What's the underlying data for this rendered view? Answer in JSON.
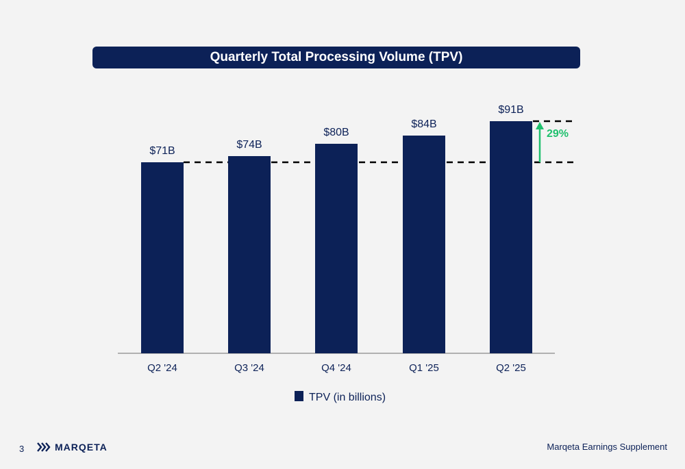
{
  "chart_data": {
    "type": "bar",
    "title": "Quarterly Total Processing Volume (TPV)",
    "categories": [
      "Q2 '24",
      "Q3 '24",
      "Q4 '24",
      "Q1 '25",
      "Q2 '25"
    ],
    "series": [
      {
        "name": "TPV (in billions)",
        "values": [
          71,
          74,
          80,
          84,
          91
        ],
        "color": "#0c2157"
      }
    ],
    "data_labels": [
      "$71B",
      "$74B",
      "$80B",
      "$84B",
      "$91B"
    ],
    "ylim": [
      0,
      100
    ],
    "grid": false,
    "legend_position": "bottom",
    "annotation": {
      "text": "29%",
      "color": "#20c06e"
    }
  },
  "footer": {
    "page_number": "3",
    "brand": "MARQETA",
    "supplement": "Marqeta Earnings Supplement"
  }
}
